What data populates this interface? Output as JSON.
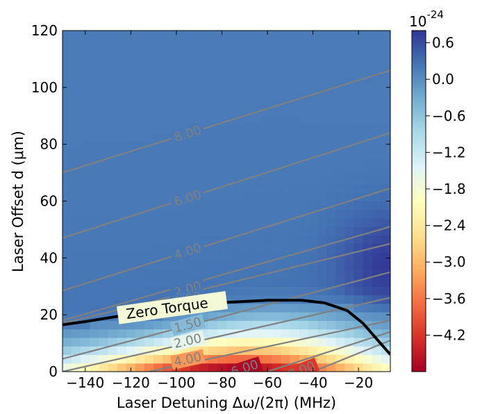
{
  "chart_data": {
    "type": "heatmap",
    "xlabel": "Laser Detuning Δω/(2π) (MHz)",
    "ylabel": "Laser Offset d (μm)",
    "xlim": [
      -150,
      -6
    ],
    "ylim": [
      0,
      120
    ],
    "xticks": [
      -140,
      -120,
      -100,
      -80,
      -60,
      -40,
      -20
    ],
    "xtick_labels": [
      "−140",
      "−120",
      "−100",
      "−80",
      "−60",
      "−40",
      "−20"
    ],
    "yticks": [
      0,
      20,
      40,
      60,
      80,
      100,
      120
    ],
    "ytick_labels": [
      "0",
      "20",
      "40",
      "60",
      "80",
      "100",
      "120"
    ],
    "colorbar": {
      "multiplier": "10",
      "exponent": "-24",
      "range": [
        -4.8,
        0.8
      ],
      "ticks": [
        0.6,
        0.0,
        -0.6,
        -1.2,
        -1.8,
        -2.4,
        -3.0,
        -3.6,
        -4.2
      ],
      "tick_labels": [
        "0.6",
        "0.0",
        "−0.6",
        "−1.2",
        "−1.8",
        "−2.4",
        "−3.0",
        "−3.6",
        "−4.2"
      ],
      "colors": [
        "#a50026",
        "#d73027",
        "#f46d43",
        "#fdae61",
        "#fee090",
        "#ffffbf",
        "#e0f3f8",
        "#abd9e9",
        "#74add1",
        "#4575b4",
        "#313695"
      ]
    },
    "contours": [
      {
        "level": "8.00",
        "points": [
          [
            -150,
            70
          ],
          [
            -6,
            106
          ]
        ],
        "label_at": [
          -95,
          83.7
        ]
      },
      {
        "level": "6.00",
        "points": [
          [
            -150,
            47
          ],
          [
            -6,
            84
          ]
        ],
        "label_at": [
          -95,
          61
        ]
      },
      {
        "level": "4.00",
        "points": [
          [
            -150,
            28.5
          ],
          [
            -6,
            64.5
          ]
        ],
        "label_at": [
          -95,
          42.3
        ]
      },
      {
        "level": "2.00",
        "points": [
          [
            -150,
            18
          ],
          [
            -6,
            51
          ]
        ],
        "label_at": [
          -95,
          29
        ]
      },
      {
        "level": "1.50",
        "points": [
          [
            -150,
            17
          ],
          [
            -6,
            45
          ]
        ],
        "label_at": [
          -95,
          25.5
        ]
      },
      {
        "level": "1.50",
        "points": [
          [
            -150,
            4.5
          ],
          [
            -6,
            35
          ]
        ],
        "label_at": [
          -95,
          16.4
        ]
      },
      {
        "level": "2.00",
        "points": [
          [
            -150,
            0
          ],
          [
            -6,
            26
          ]
        ],
        "label_at": [
          -95,
          10.8
        ]
      },
      {
        "level": "4.00",
        "points": [
          [
            -112,
            0
          ],
          [
            -6,
            18
          ]
        ],
        "label_at": [
          -95,
          4.3
        ]
      },
      {
        "level": "6.00",
        "points": [
          [
            -60,
            0
          ],
          [
            -6,
            14
          ]
        ],
        "label_at": [
          -70,
          1.2
        ]
      },
      {
        "level": "8.00",
        "points": [
          [
            -40,
            0
          ],
          [
            -6,
            11
          ]
        ],
        "label_at": [
          -45,
          0.5
        ]
      }
    ],
    "zero_torque": {
      "label": "Zero Torque",
      "points": [
        [
          -150,
          16.5
        ],
        [
          -140,
          17.6
        ],
        [
          -120,
          20.2
        ],
        [
          -100,
          22.6
        ],
        [
          -80,
          24.3
        ],
        [
          -60,
          25.1
        ],
        [
          -45,
          25.1
        ],
        [
          -35,
          24.2
        ],
        [
          -25,
          21.5
        ],
        [
          -18,
          17
        ],
        [
          -12,
          11.5
        ],
        [
          -6,
          6
        ]
      ]
    }
  }
}
